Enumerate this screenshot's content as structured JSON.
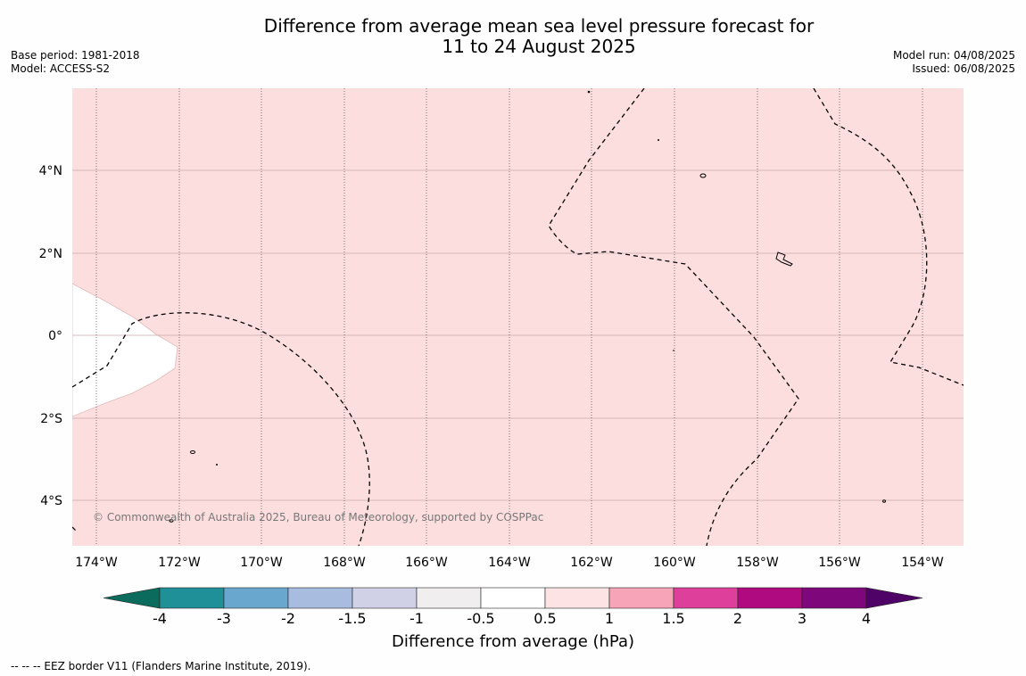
{
  "header": {
    "title_line1": "Difference from average mean sea level pressure forecast for",
    "title_line2": "11 to 24 August 2025",
    "base_period": "Base period: 1981-2018",
    "model": "Model: ACCESS-S2",
    "model_run": "Model run: 04/08/2025",
    "issued": "Issued: 06/08/2025"
  },
  "map": {
    "lat_labels": [
      "4°N",
      "2°N",
      "0°",
      "2°S",
      "4°S"
    ],
    "lon_labels": [
      "174°W",
      "172°W",
      "170°W",
      "168°W",
      "166°W",
      "164°W",
      "162°W",
      "160°W",
      "158°W",
      "156°W",
      "154°W"
    ],
    "credit": "© Commonwealth of Australia 2025, Bureau of Meteorology, supported by COSPPac",
    "fill_color": "#fcdede",
    "neutral_color": "#ffffff"
  },
  "colorbar": {
    "label": "Difference from average (hPa)",
    "ticks": [
      "-4",
      "-3",
      "-2",
      "-1.5",
      "-1",
      "-0.5",
      "0.5",
      "1",
      "1.5",
      "2",
      "3",
      "4"
    ],
    "colors": [
      "#0b6b5c",
      "#1f8f98",
      "#6aa7cf",
      "#a7bcde",
      "#d0d0e6",
      "#f0eeef",
      "#ffffff",
      "#fde3e3",
      "#f7a3b8",
      "#dd3f9b",
      "#b00a80",
      "#7e087b",
      "#4f0367"
    ]
  },
  "footer": {
    "text": "--  --  -- EEZ border V11 (Flanders Marine Institute, 2019)."
  }
}
